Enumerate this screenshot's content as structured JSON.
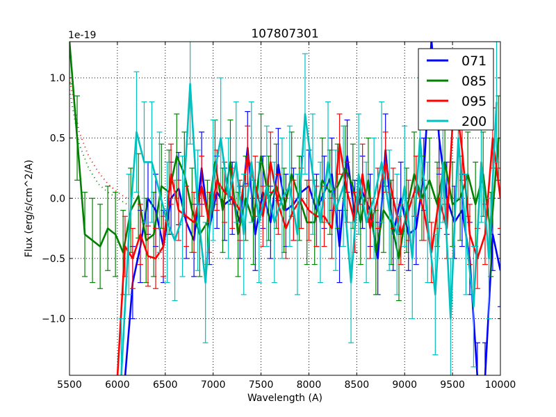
{
  "chart_data": {
    "type": "line",
    "title": "107807301",
    "xlabel": "Wavelength (A)",
    "ylabel": "Flux (erg/s/cm^2/A)",
    "y_scale_label": "1e-19",
    "xlim": [
      5500,
      10000
    ],
    "ylim": [
      -1.47,
      1.3
    ],
    "xticks": [
      5500,
      6000,
      6500,
      7000,
      7500,
      8000,
      8500,
      9000,
      9500,
      10000
    ],
    "xtick_labels": [
      "5500",
      "6000",
      "6500",
      "7000",
      "7500",
      "8000",
      "8500",
      "9000",
      "9500",
      "10000"
    ],
    "yticks": [
      -1.0,
      -0.5,
      0.0,
      0.5,
      1.0
    ],
    "ytick_labels": [
      "−1.0",
      "−0.5",
      "0.0",
      "0.5",
      "1.0"
    ],
    "grid": true,
    "legend_position": "top-right",
    "series": [
      {
        "name": "071",
        "color": "#0000ff",
        "x_start": 6080,
        "x_step": 80,
        "err": 0.3,
        "y": [
          -2.0,
          -0.7,
          -0.4,
          0.0,
          -0.1,
          -0.4,
          0.0,
          0.08,
          -0.2,
          -0.35,
          0.25,
          -0.25,
          0.05,
          -0.05,
          0.0,
          -0.2,
          0.42,
          -0.3,
          0.05,
          -0.2,
          0.28,
          -0.1,
          -0.05,
          0.05,
          0.1,
          -0.1,
          0.05,
          0.2,
          -0.4,
          0.35,
          -0.15,
          0.05,
          -0.1,
          -0.5,
          0.4,
          -0.3,
          0.0,
          -0.3,
          -0.25,
          0.2,
          1.5,
          0.5,
          0.0,
          -0.2,
          -0.1,
          -0.5,
          -1.5,
          -1.5,
          -0.3,
          -0.6
        ]
      },
      {
        "name": "085",
        "color": "#008000",
        "x_start": 5500,
        "x_step": 80,
        "err": 0.35,
        "y": [
          1.3,
          0.5,
          -0.3,
          -0.35,
          -0.4,
          -0.25,
          -0.3,
          -0.45,
          -0.1,
          0.02,
          -0.35,
          -0.3,
          0.1,
          0.05,
          0.35,
          0.2,
          -0.1,
          -0.3,
          -0.2,
          0.3,
          -0.1,
          0.3,
          -0.3,
          0.0,
          -0.2,
          0.35,
          0.0,
          0.1,
          -0.1,
          0.2,
          0.0,
          -0.2,
          -0.2,
          0.15,
          0.05,
          0.1,
          0.25,
          0.1,
          -0.2,
          0.15,
          -0.45,
          -0.1,
          -0.2,
          -0.5,
          -0.1,
          0.2,
          0.0,
          0.15,
          -0.05,
          0.3,
          -0.05,
          0.0,
          0.2,
          -0.05,
          0.2,
          -0.3,
          0.5
        ]
      },
      {
        "name": "095",
        "color": "#ff0000",
        "x_start": 6000,
        "x_step": 80,
        "err": 0.25,
        "y": [
          -2.0,
          -0.4,
          -0.5,
          -0.3,
          -0.48,
          -0.5,
          -0.4,
          0.2,
          -0.1,
          -0.15,
          -0.2,
          0.1,
          -0.2,
          0.15,
          0.05,
          0.0,
          -0.1,
          0.35,
          0.1,
          -0.15,
          0.3,
          -0.05,
          -0.25,
          -0.1,
          0.0,
          -0.1,
          -0.15,
          -0.15,
          -0.25,
          0.45,
          0.05,
          -0.2,
          0.2,
          -0.25,
          0.0,
          0.3,
          0.0,
          -0.3,
          -0.1,
          0.1,
          -0.1,
          -0.45,
          0.0,
          -0.25,
          0.9,
          0.4,
          -0.3,
          -0.5,
          -0.3,
          0.5,
          0.0
        ]
      },
      {
        "name": "200",
        "color": "#00bfbf",
        "x_start": 6040,
        "x_step": 80,
        "err": 0.5,
        "y": [
          -1.5,
          -0.3,
          0.55,
          0.3,
          0.3,
          0.05,
          -0.2,
          -0.35,
          -0.15,
          0.95,
          -0.1,
          -0.7,
          0.15,
          0.5,
          0.0,
          0.3,
          -0.3,
          0.3,
          -0.2,
          0.1,
          -0.2,
          0.0,
          0.1,
          -0.3,
          0.7,
          0.2,
          -0.2,
          0.3,
          -0.1,
          0.1,
          -0.7,
          0.2,
          -0.2,
          0.0,
          0.3,
          -0.1,
          -0.3,
          0.1,
          -0.5,
          0.5,
          -0.2,
          -0.8,
          0.3,
          -1.0,
          0.5,
          -0.3,
          -0.9,
          0.3,
          -0.5,
          0.8
        ]
      }
    ],
    "dotted_curves": [
      {
        "color": "#ff0000",
        "x": [
          5500,
          5600,
          5700,
          5800,
          5900,
          6000,
          6100
        ],
        "y": [
          1.0,
          0.55,
          0.35,
          0.22,
          0.12,
          0.05,
          0.0
        ]
      },
      {
        "color": "#008000",
        "x": [
          5500,
          5600,
          5700,
          5800,
          5900,
          6000,
          6100
        ],
        "y": [
          0.9,
          0.45,
          0.25,
          0.12,
          0.05,
          0.0,
          -0.05
        ]
      }
    ]
  }
}
